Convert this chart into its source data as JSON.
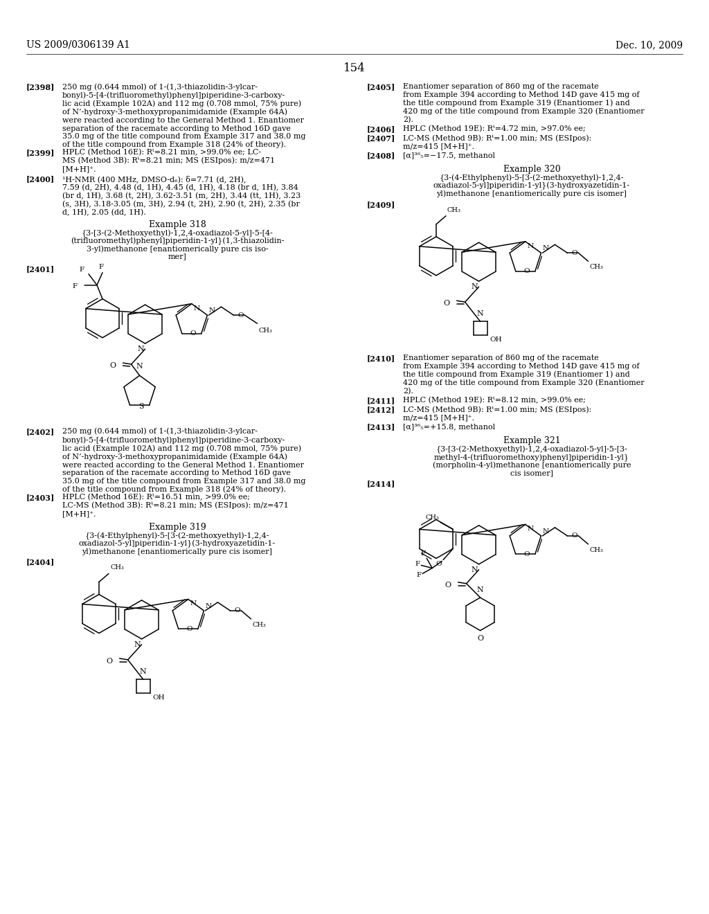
{
  "page_header_left": "US 2009/0306139 A1",
  "page_header_right": "Dec. 10, 2009",
  "page_number": "154",
  "background_color": "#ffffff",
  "text_color": "#000000",
  "body_fs": 8.0,
  "tag_fs": 8.0,
  "header_fs": 10.0,
  "page_num_fs": 12.0,
  "example_fs": 9.0,
  "title_fs": 8.5
}
